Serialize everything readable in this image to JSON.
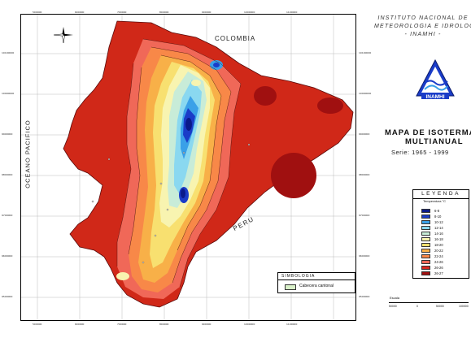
{
  "institute": {
    "line1": "INSTITUTO NACIONAL DE",
    "line2": "METEOROLOGIA E IDROLOGIA",
    "line3": "- INAMHI -",
    "logo_text": "INAMHI"
  },
  "title": {
    "line1": "MAPA DE ISOTERMAS",
    "line2": "MULTIANUAL",
    "series": "Serie: 1965 - 1999"
  },
  "labels": {
    "colombia": "COLOMBIA",
    "peru": "PERU",
    "ocean": "OCEANO PACIFICO"
  },
  "legend": {
    "title": "LEYENDA",
    "unit": "Temperatura °C",
    "items": [
      {
        "label": "6-8",
        "color": "#0a1a8a"
      },
      {
        "label": "8-10",
        "color": "#1a3cc8"
      },
      {
        "label": "10-12",
        "color": "#3aa0e8"
      },
      {
        "label": "12-14",
        "color": "#8ad8f0"
      },
      {
        "label": "14-16",
        "color": "#c8ecd8"
      },
      {
        "label": "16-18",
        "color": "#f8f4b0"
      },
      {
        "label": "18-20",
        "color": "#f8e070"
      },
      {
        "label": "20-22",
        "color": "#f8b048"
      },
      {
        "label": "22-24",
        "color": "#f88848"
      },
      {
        "label": "24-26",
        "color": "#f06858"
      },
      {
        "label": "26-26",
        "color": "#d82820"
      },
      {
        "label": "26-27",
        "color": "#a01010"
      }
    ]
  },
  "simbologia": {
    "title": "SIMBOLOGIA",
    "item_label": "Cabecera cantonal"
  },
  "scale": {
    "label": "Escala",
    "ticks": [
      "50000",
      "0",
      "50000",
      "100000"
    ]
  },
  "axis_ticks": {
    "top": [
      "500000",
      "600000",
      "700000",
      "800000",
      "900000",
      "1000000",
      "1100000"
    ],
    "bottom": [
      "500000",
      "600000",
      "700000",
      "800000",
      "900000",
      "1000000",
      "1100000"
    ],
    "left": [
      "10100000",
      "10000000",
      "9900000",
      "9800000",
      "9700000",
      "9600000",
      "9500000"
    ],
    "right": [
      "10100000",
      "10000000",
      "9900000",
      "9800000",
      "9700000",
      "9600000",
      "9500000"
    ]
  }
}
